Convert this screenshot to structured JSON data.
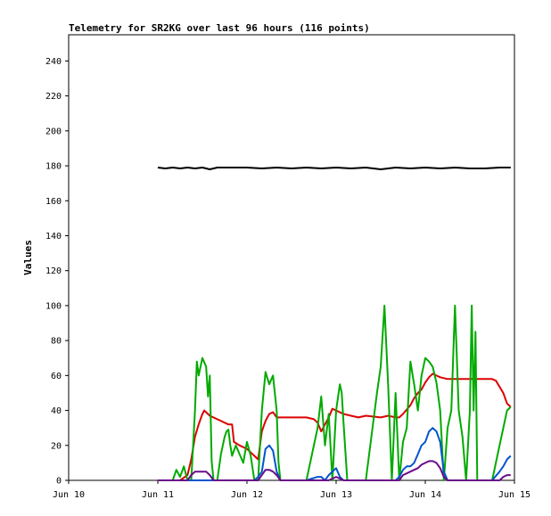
{
  "chart_data": {
    "type": "line",
    "title": "Telemetry for SR2KG over last 96 hours (116 points)",
    "xlabel": "",
    "ylabel": "Values",
    "x_range_hours": [
      0,
      120
    ],
    "ylim": [
      0,
      255
    ],
    "y_ticks": [
      0,
      20,
      40,
      60,
      80,
      100,
      120,
      140,
      160,
      180,
      200,
      220,
      240
    ],
    "x_ticks": [
      {
        "label": "Jun 10",
        "hour": 0
      },
      {
        "label": "Jun 11",
        "hour": 24
      },
      {
        "label": "Jun 12",
        "hour": 48
      },
      {
        "label": "Jun 13",
        "hour": 72
      },
      {
        "label": "Jun 14",
        "hour": 96
      },
      {
        "label": "Jun 15",
        "hour": 120
      }
    ],
    "grid": false,
    "legend": "none",
    "series": [
      {
        "color": "#000000",
        "points": [
          [
            24,
            179
          ],
          [
            26,
            178.5
          ],
          [
            28,
            179
          ],
          [
            30,
            178.5
          ],
          [
            32,
            179
          ],
          [
            34,
            178.5
          ],
          [
            36,
            179
          ],
          [
            38,
            178
          ],
          [
            40,
            179
          ],
          [
            44,
            179
          ],
          [
            48,
            179
          ],
          [
            52,
            178.5
          ],
          [
            56,
            179
          ],
          [
            60,
            178.5
          ],
          [
            64,
            179
          ],
          [
            68,
            178.5
          ],
          [
            72,
            179
          ],
          [
            76,
            178.5
          ],
          [
            80,
            179
          ],
          [
            84,
            178
          ],
          [
            88,
            179
          ],
          [
            92,
            178.5
          ],
          [
            96,
            179
          ],
          [
            100,
            178.5
          ],
          [
            104,
            179
          ],
          [
            108,
            178.5
          ],
          [
            112,
            178.5
          ],
          [
            116,
            179
          ],
          [
            119,
            179
          ]
        ]
      },
      {
        "color": "#dd0000",
        "points": [
          [
            24,
            0
          ],
          [
            28,
            0
          ],
          [
            30,
            0
          ],
          [
            32,
            3
          ],
          [
            33,
            12
          ],
          [
            34,
            25
          ],
          [
            35,
            32
          ],
          [
            36,
            38
          ],
          [
            36.5,
            40
          ],
          [
            38,
            37
          ],
          [
            40,
            35
          ],
          [
            42,
            33
          ],
          [
            43,
            32
          ],
          [
            44,
            32
          ],
          [
            44.5,
            22
          ],
          [
            46,
            20
          ],
          [
            48,
            18
          ],
          [
            50,
            14
          ],
          [
            51,
            12
          ],
          [
            52,
            28
          ],
          [
            53,
            34
          ],
          [
            54,
            38
          ],
          [
            55,
            39
          ],
          [
            56,
            36
          ],
          [
            60,
            36
          ],
          [
            64,
            36
          ],
          [
            66,
            35
          ],
          [
            67,
            33
          ],
          [
            68,
            28
          ],
          [
            69,
            32
          ],
          [
            70,
            36
          ],
          [
            71,
            41
          ],
          [
            72,
            40
          ],
          [
            74,
            38
          ],
          [
            76,
            37
          ],
          [
            78,
            36
          ],
          [
            80,
            37
          ],
          [
            84,
            36
          ],
          [
            86,
            37
          ],
          [
            88,
            36
          ],
          [
            89,
            36
          ],
          [
            90,
            38
          ],
          [
            92,
            43
          ],
          [
            93,
            47
          ],
          [
            94,
            50
          ],
          [
            95,
            52
          ],
          [
            96,
            56
          ],
          [
            97,
            59
          ],
          [
            98,
            61
          ],
          [
            99,
            60
          ],
          [
            100,
            59
          ],
          [
            102,
            58
          ],
          [
            104,
            58
          ],
          [
            106,
            58
          ],
          [
            108,
            58
          ],
          [
            110,
            58
          ],
          [
            112,
            58
          ],
          [
            114,
            58
          ],
          [
            115,
            57
          ],
          [
            117,
            50
          ],
          [
            118,
            44
          ],
          [
            119,
            42
          ]
        ]
      },
      {
        "color": "#00aa00",
        "points": [
          [
            24,
            0
          ],
          [
            28,
            0
          ],
          [
            29,
            6
          ],
          [
            30,
            2
          ],
          [
            31,
            8
          ],
          [
            32,
            0
          ],
          [
            33,
            0
          ],
          [
            34,
            40
          ],
          [
            34.5,
            68
          ],
          [
            35,
            60
          ],
          [
            36,
            70
          ],
          [
            37,
            65
          ],
          [
            37.5,
            48
          ],
          [
            38,
            60
          ],
          [
            38.5,
            11
          ],
          [
            39,
            0
          ],
          [
            40,
            0
          ],
          [
            41,
            15
          ],
          [
            42,
            25
          ],
          [
            42.5,
            28
          ],
          [
            43,
            29
          ],
          [
            43.5,
            20
          ],
          [
            44,
            14
          ],
          [
            45,
            20
          ],
          [
            46,
            15
          ],
          [
            47,
            10
          ],
          [
            48,
            22
          ],
          [
            49,
            14
          ],
          [
            50,
            0
          ],
          [
            51,
            0
          ],
          [
            52,
            40
          ],
          [
            53,
            62
          ],
          [
            54,
            55
          ],
          [
            55,
            60
          ],
          [
            56,
            40
          ],
          [
            56.5,
            10
          ],
          [
            57,
            0
          ],
          [
            60,
            0
          ],
          [
            64,
            0
          ],
          [
            67,
            30
          ],
          [
            68,
            48
          ],
          [
            69,
            20
          ],
          [
            70,
            38
          ],
          [
            71,
            0
          ],
          [
            72,
            40
          ],
          [
            73,
            55
          ],
          [
            73.5,
            50
          ],
          [
            74,
            33
          ],
          [
            75,
            0
          ],
          [
            80,
            0
          ],
          [
            83,
            50
          ],
          [
            84,
            65
          ],
          [
            85,
            100
          ],
          [
            86,
            55
          ],
          [
            87,
            0
          ],
          [
            88,
            50
          ],
          [
            89,
            0
          ],
          [
            90,
            22
          ],
          [
            91,
            30
          ],
          [
            92,
            68
          ],
          [
            93,
            55
          ],
          [
            94,
            40
          ],
          [
            95,
            60
          ],
          [
            96,
            70
          ],
          [
            97,
            68
          ],
          [
            98,
            65
          ],
          [
            99,
            56
          ],
          [
            100,
            40
          ],
          [
            101,
            0
          ],
          [
            102,
            30
          ],
          [
            103,
            40
          ],
          [
            104,
            100
          ],
          [
            105,
            40
          ],
          [
            106,
            25
          ],
          [
            107,
            0
          ],
          [
            108,
            40
          ],
          [
            108.5,
            100
          ],
          [
            109,
            40
          ],
          [
            109.5,
            85
          ],
          [
            110,
            0
          ],
          [
            114,
            0
          ],
          [
            116,
            20
          ],
          [
            117,
            30
          ],
          [
            118,
            40
          ],
          [
            119,
            42
          ]
        ]
      },
      {
        "color": "#0055cc",
        "points": [
          [
            24,
            0
          ],
          [
            50,
            0
          ],
          [
            51,
            2
          ],
          [
            52,
            5
          ],
          [
            53,
            18
          ],
          [
            54,
            20
          ],
          [
            55,
            17
          ],
          [
            56,
            5
          ],
          [
            57,
            0
          ],
          [
            60,
            0
          ],
          [
            64,
            0
          ],
          [
            67,
            2
          ],
          [
            68,
            2
          ],
          [
            69,
            0
          ],
          [
            70,
            3
          ],
          [
            71,
            5
          ],
          [
            72,
            7
          ],
          [
            73,
            2
          ],
          [
            74,
            0
          ],
          [
            80,
            0
          ],
          [
            88,
            0
          ],
          [
            89,
            2
          ],
          [
            90,
            6
          ],
          [
            91,
            8
          ],
          [
            92,
            8
          ],
          [
            93,
            10
          ],
          [
            94,
            15
          ],
          [
            95,
            20
          ],
          [
            96,
            22
          ],
          [
            97,
            28
          ],
          [
            98,
            30
          ],
          [
            99,
            28
          ],
          [
            100,
            22
          ],
          [
            101,
            5
          ],
          [
            102,
            0
          ],
          [
            110,
            0
          ],
          [
            114,
            0
          ],
          [
            116,
            5
          ],
          [
            117,
            8
          ],
          [
            118,
            12
          ],
          [
            119,
            14
          ]
        ]
      },
      {
        "color": "#6a0a8a",
        "points": [
          [
            24,
            0
          ],
          [
            32,
            0
          ],
          [
            33,
            3
          ],
          [
            34,
            5
          ],
          [
            35,
            5
          ],
          [
            36,
            5
          ],
          [
            37,
            5
          ],
          [
            38,
            3
          ],
          [
            39,
            0
          ],
          [
            50,
            0
          ],
          [
            51,
            0
          ],
          [
            52,
            3
          ],
          [
            53,
            6
          ],
          [
            54,
            6
          ],
          [
            55,
            5
          ],
          [
            56,
            3
          ],
          [
            57,
            0
          ],
          [
            60,
            0
          ],
          [
            64,
            0
          ],
          [
            70,
            0
          ],
          [
            72,
            2
          ],
          [
            73,
            1
          ],
          [
            74,
            0
          ],
          [
            80,
            0
          ],
          [
            89,
            0
          ],
          [
            90,
            3
          ],
          [
            92,
            5
          ],
          [
            93,
            6
          ],
          [
            94,
            7
          ],
          [
            95,
            9
          ],
          [
            96,
            10
          ],
          [
            97,
            11
          ],
          [
            98,
            11
          ],
          [
            99,
            10
          ],
          [
            100,
            7
          ],
          [
            101,
            2
          ],
          [
            102,
            0
          ],
          [
            110,
            0
          ],
          [
            114,
            0
          ],
          [
            116,
            0
          ],
          [
            117,
            2
          ],
          [
            118,
            3
          ],
          [
            119,
            3
          ]
        ]
      }
    ]
  }
}
